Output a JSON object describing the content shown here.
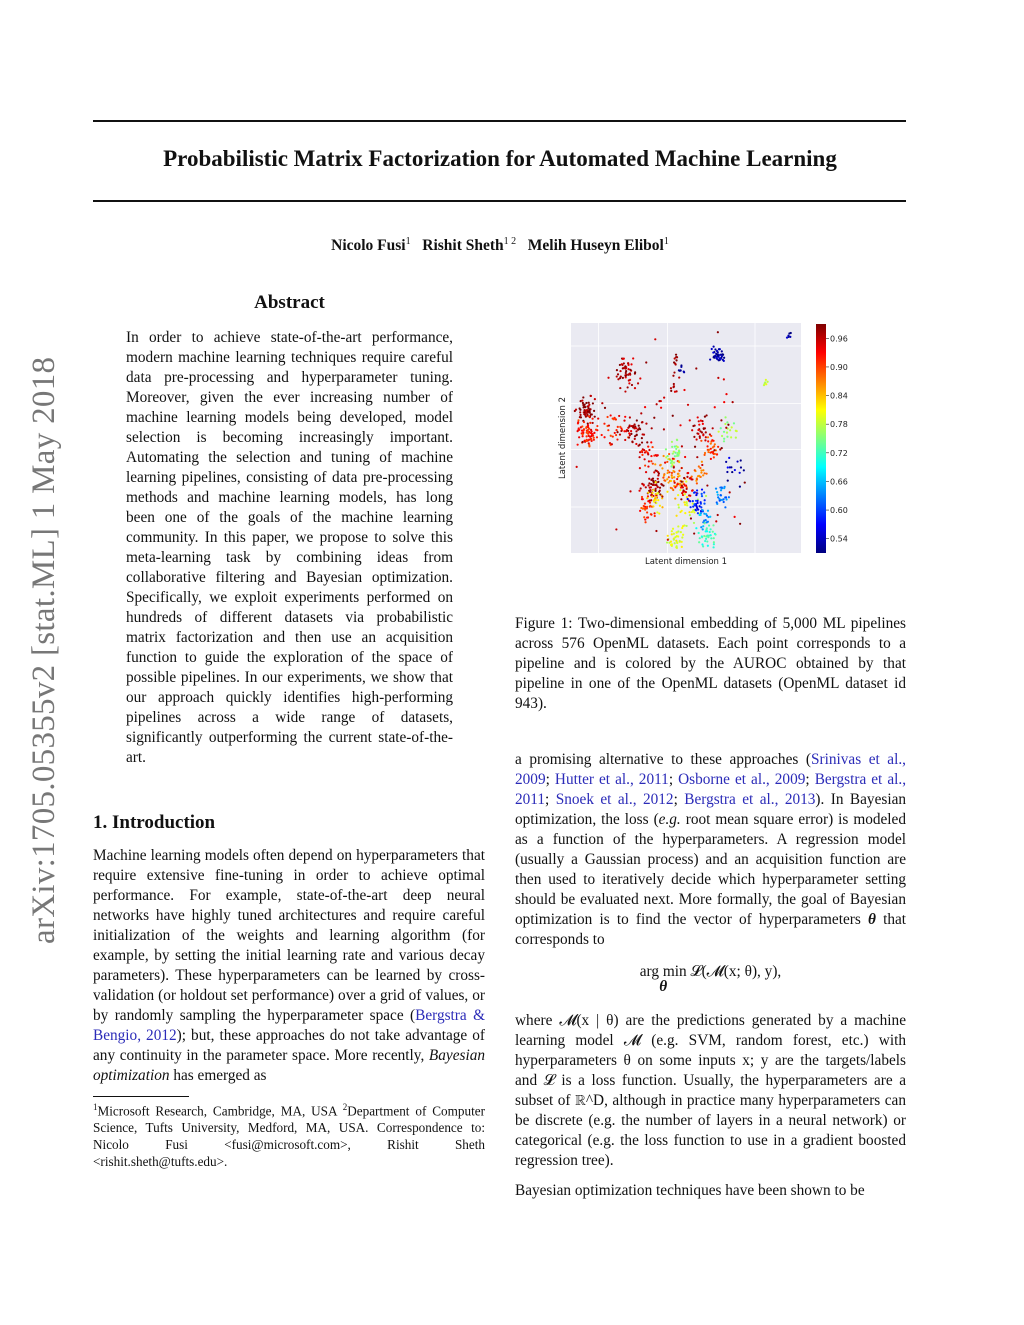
{
  "arxiv_id": "arXiv:1705.05355v2  [stat.ML]  1 May 2018",
  "title": "Probabilistic Matrix Factorization for Automated Machine Learning",
  "authors": [
    {
      "name": "Nicolo Fusi",
      "aff": "1"
    },
    {
      "name": "Rishit Sheth",
      "aff": "1 2"
    },
    {
      "name": "Melih Huseyn Elibol",
      "aff": "1"
    }
  ],
  "abstract": {
    "heading": "Abstract",
    "text": "In order to achieve state-of-the-art performance, modern machine learning techniques require careful data pre-processing and hyperparameter tuning. Moreover, given the ever increasing number of machine learning models being developed, model selection is becoming increasingly important. Automating the selection and tuning of machine learning pipelines, consisting of data pre-processing methods and machine learning models, has long been one of the goals of the machine learning community. In this paper, we propose to solve this meta-learning task by combining ideas from collaborative filtering and Bayesian optimization. Specifically, we exploit experiments performed on hundreds of different datasets via probabilistic matrix factorization and then use an acquisition function to guide the exploration of the space of possible pipelines. In our experiments, we show that our approach quickly identifies high-performing pipelines across a wide range of datasets, significantly outperforming the current state-of-the-art."
  },
  "intro": {
    "heading": "1. Introduction",
    "t1": "Machine learning models often depend on hyperparameters that require extensive fine-tuning in order to achieve optimal performance. For example, state-of-the-art deep neural networks have highly tuned architectures and require careful initialization of the weights and learning algorithm (for example, by setting the initial learning rate and various decay parameters). These hyperparameters can be learned by cross-validation (or holdout set performance) over a grid of values, or by randomly sampling the hyperparameter space (",
    "cite1": "Bergstra & Bengio, 2012",
    "t2": "); but, these approaches do not take advantage of any continuity in the parameter space. More recently, ",
    "em": "Bayesian optimization",
    "t3": " has emerged as"
  },
  "footnote": {
    "s1": "1",
    "a1": "Microsoft Research, Cambridge, MA, USA ",
    "s2": "2",
    "a2": "Department of Computer Science, Tufts University, Medford, MA, USA. Correspondence to: Nicolo Fusi <fusi@microsoft.com>, Rishit Sheth <rishit.sheth@tufts.edu>."
  },
  "figure": {
    "caption": "Figure 1:  Two-dimensional embedding of 5,000 ML pipelines across 576 OpenML datasets. Each point corresponds to a pipeline and is colored by the AUROC obtained by that pipeline in one of the OpenML datasets (OpenML dataset id 943)."
  },
  "chart_data": {
    "type": "scatter",
    "xlabel": "Latent dimension 1",
    "ylabel": "Latent dimension 2",
    "grid": true,
    "colorbar": {
      "colormap": "jet",
      "ticks": [
        "0.96",
        "0.90",
        "0.84",
        "0.78",
        "0.72",
        "0.66",
        "0.60",
        "0.54"
      ],
      "range": [
        0.51,
        0.99
      ]
    },
    "clusters": [
      {
        "x": 0.07,
        "y": 0.62,
        "v": 0.98,
        "n": 60,
        "s": 0.02
      },
      {
        "x": 0.07,
        "y": 0.52,
        "v": 0.92,
        "n": 70,
        "s": 0.025
      },
      {
        "x": 0.24,
        "y": 0.79,
        "v": 0.97,
        "n": 50,
        "s": 0.022
      },
      {
        "x": 0.19,
        "y": 0.55,
        "v": 0.92,
        "n": 30,
        "s": 0.025
      },
      {
        "x": 0.28,
        "y": 0.54,
        "v": 0.97,
        "n": 45,
        "s": 0.025
      },
      {
        "x": 0.33,
        "y": 0.42,
        "v": 0.93,
        "n": 30,
        "s": 0.025
      },
      {
        "x": 0.36,
        "y": 0.28,
        "v": 0.97,
        "n": 60,
        "s": 0.025
      },
      {
        "x": 0.33,
        "y": 0.19,
        "v": 0.91,
        "n": 30,
        "s": 0.02
      },
      {
        "x": 0.37,
        "y": 0.24,
        "v": 0.82,
        "n": 25,
        "s": 0.02
      },
      {
        "x": 0.45,
        "y": 0.43,
        "v": 0.76,
        "n": 35,
        "s": 0.02
      },
      {
        "x": 0.43,
        "y": 0.36,
        "v": 0.88,
        "n": 30,
        "s": 0.03
      },
      {
        "x": 0.46,
        "y": 0.3,
        "v": 0.86,
        "n": 25,
        "s": 0.025
      },
      {
        "x": 0.5,
        "y": 0.29,
        "v": 0.95,
        "n": 30,
        "s": 0.02
      },
      {
        "x": 0.5,
        "y": 0.2,
        "v": 0.8,
        "n": 30,
        "s": 0.03
      },
      {
        "x": 0.55,
        "y": 0.22,
        "v": 0.58,
        "n": 35,
        "s": 0.02
      },
      {
        "x": 0.58,
        "y": 0.15,
        "v": 0.65,
        "n": 20,
        "s": 0.015
      },
      {
        "x": 0.46,
        "y": 0.06,
        "v": 0.8,
        "n": 40,
        "s": 0.02
      },
      {
        "x": 0.59,
        "y": 0.08,
        "v": 0.72,
        "n": 35,
        "s": 0.02
      },
      {
        "x": 0.56,
        "y": 0.35,
        "v": 0.87,
        "n": 20,
        "s": 0.015
      },
      {
        "x": 0.61,
        "y": 0.45,
        "v": 0.9,
        "n": 30,
        "s": 0.02
      },
      {
        "x": 0.57,
        "y": 0.54,
        "v": 0.96,
        "n": 25,
        "s": 0.02
      },
      {
        "x": 0.65,
        "y": 0.25,
        "v": 0.63,
        "n": 25,
        "s": 0.015
      },
      {
        "x": 0.68,
        "y": 0.53,
        "v": 0.76,
        "n": 20,
        "s": 0.02
      },
      {
        "x": 0.71,
        "y": 0.36,
        "v": 0.54,
        "n": 15,
        "s": 0.03
      },
      {
        "x": 0.64,
        "y": 0.86,
        "v": 0.53,
        "n": 40,
        "s": 0.012
      },
      {
        "x": 0.46,
        "y": 0.84,
        "v": 0.97,
        "n": 8,
        "s": 0.008
      },
      {
        "x": 0.48,
        "y": 0.8,
        "v": 0.52,
        "n": 8,
        "s": 0.006
      },
      {
        "x": 0.45,
        "y": 0.72,
        "v": 0.97,
        "n": 6,
        "s": 0.01
      },
      {
        "x": 0.85,
        "y": 0.74,
        "v": 0.8,
        "n": 6,
        "s": 0.008
      },
      {
        "x": 0.95,
        "y": 0.94,
        "v": 0.52,
        "n": 6,
        "s": 0.006
      },
      {
        "x": 0.5,
        "y": 0.5,
        "v": 0.96,
        "n": 80,
        "s": 0.15
      }
    ]
  },
  "right": {
    "p1a": "a promising alternative to these approaches (",
    "cites": [
      "Srinivas et al., 2009",
      "Hutter et al., 2011",
      "Osborne et al., 2009",
      "Bergstra et al., 2011",
      "Snoek et al., 2012",
      "Bergstra et al., 2013"
    ],
    "p1b": "). In Bayesian optimization, the loss (",
    "eg": "e.g.",
    "p1c": " root mean square error) is modeled as a function of the hyperparameters. A regression model (usually a Gaussian process) and an acquisition function are then used to iteratively decide which hyperparameter setting should be evaluated next. More formally, the goal of Bayesian optimization is to find the vector of hyperparameters ",
    "theta": "θ",
    "p1d": " that corresponds to",
    "eq_arg": "arg min",
    "eq_sub": "θ",
    "eq_body": "𝓛(𝓜(x; θ), y),",
    "p2": "where 𝓜(x | θ) are the predictions generated by a machine learning model 𝓜 (e.g. SVM, random forest, etc.) with hyperparameters θ on some inputs x; y are the targets/labels and 𝓛 is a loss function. Usually, the hyperparameters are a subset of ℝ^D, although in practice many hyperparameters can be discrete (e.g. the number of layers in a neural network) or categorical (e.g. the loss function to use in a gradient boosted regression tree).",
    "p3": "Bayesian optimization techniques have been shown to be"
  }
}
